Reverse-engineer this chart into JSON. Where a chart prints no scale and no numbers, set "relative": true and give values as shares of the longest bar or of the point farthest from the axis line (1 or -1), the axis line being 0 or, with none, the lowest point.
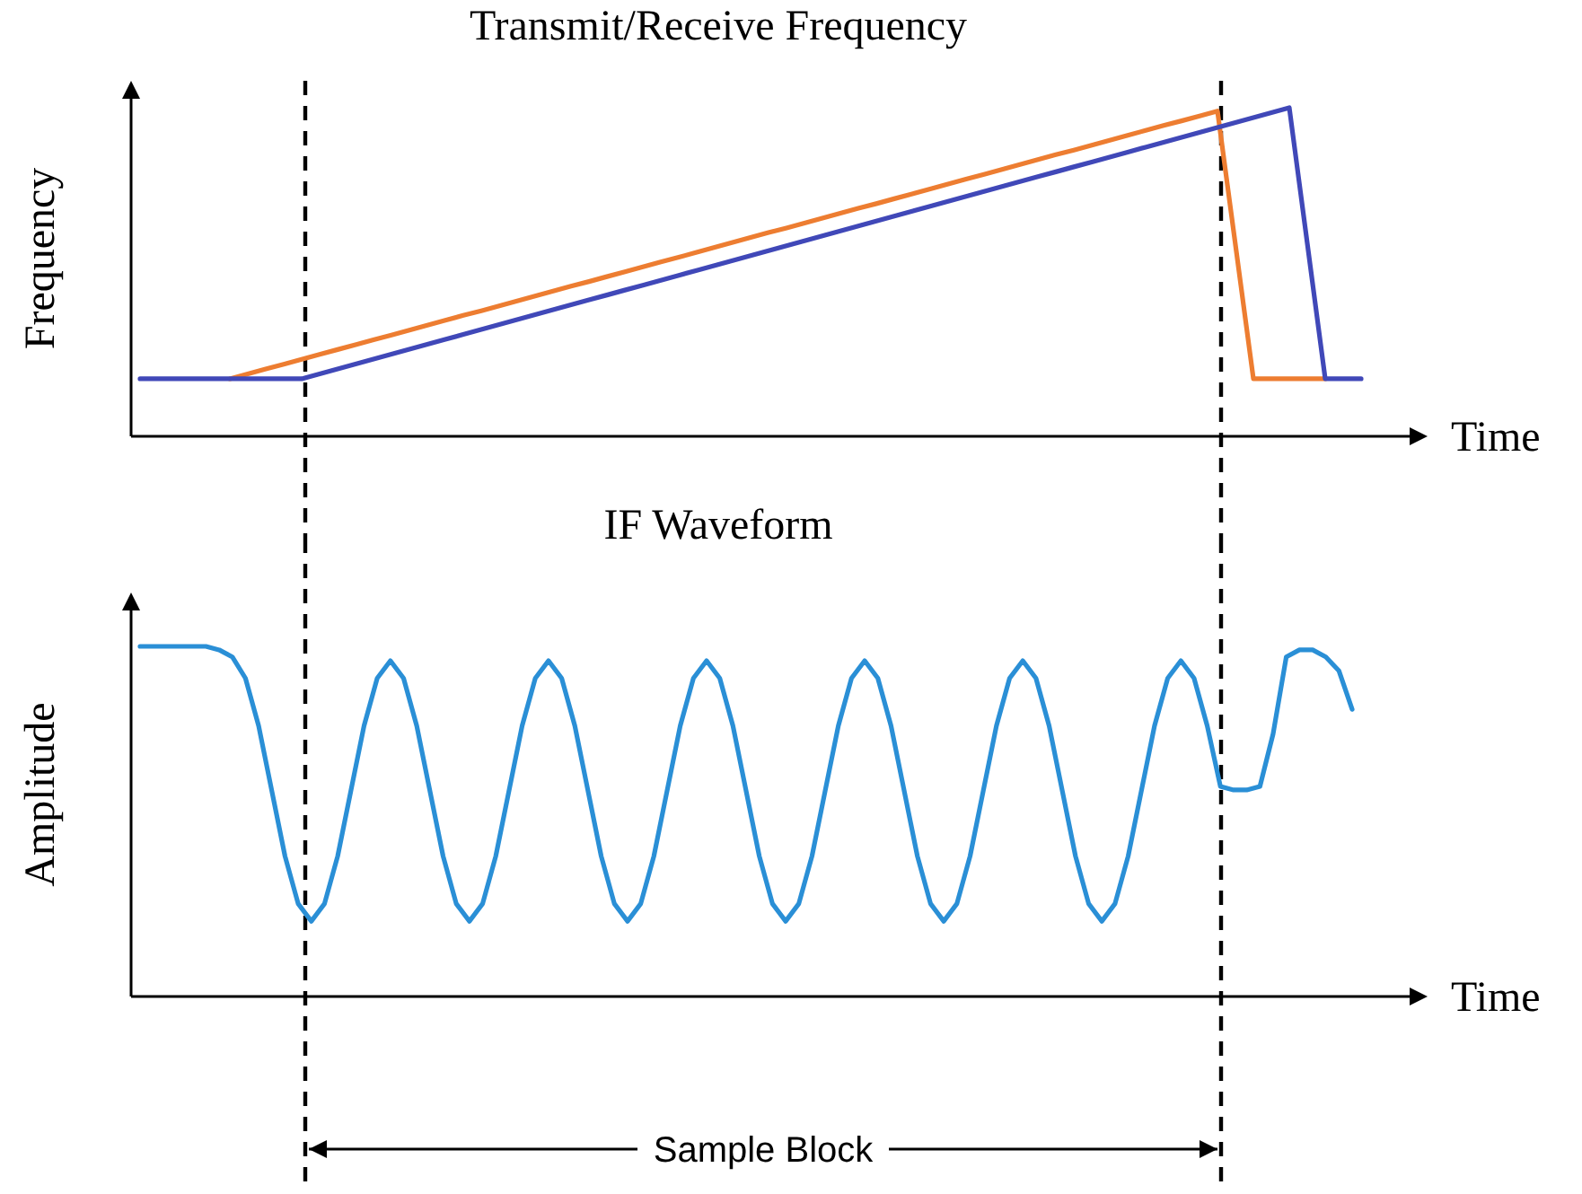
{
  "chart_data": [
    {
      "type": "line",
      "title": "Transmit/Receive Frequency",
      "xlabel": "Time",
      "ylabel": "Frequency",
      "relative": true,
      "categories": [
        null,
        null,
        null,
        null,
        null,
        null,
        null,
        null,
        null,
        null,
        null,
        null,
        null,
        null,
        null,
        null,
        null,
        null,
        null,
        null,
        null,
        null,
        null,
        null,
        null,
        null,
        null,
        null,
        null,
        null,
        null,
        null,
        null,
        null,
        null,
        null,
        null,
        null,
        null,
        null,
        null,
        null,
        null,
        null,
        null,
        null,
        null,
        null,
        null,
        null,
        null,
        null,
        null,
        null,
        null,
        null,
        null,
        null,
        null,
        null,
        null,
        null,
        null,
        null,
        null,
        null,
        null,
        null,
        null
      ],
      "series": [
        {
          "color": "#ed7d31",
          "values": [
            null,
            null,
            null,
            null,
            null,
            0.175,
            0.19,
            0.205,
            0.219,
            0.234,
            0.249,
            0.264,
            0.279,
            0.294,
            0.308,
            0.323,
            0.338,
            0.353,
            0.368,
            0.382,
            0.397,
            0.412,
            0.427,
            0.442,
            0.457,
            0.471,
            0.486,
            0.501,
            0.516,
            0.531,
            0.545,
            0.56,
            0.575,
            0.59,
            0.605,
            0.62,
            0.634,
            0.649,
            0.664,
            0.679,
            0.694,
            0.708,
            0.723,
            0.738,
            0.753,
            0.768,
            0.783,
            0.797,
            0.812,
            0.827,
            0.842,
            0.857,
            0.871,
            0.886,
            0.901,
            0.916,
            0.931,
            0.946,
            0.96,
            0.975,
            0.99,
            0.583,
            0.175,
            0.175,
            0.175,
            0.175,
            0.175,
            null,
            null
          ]
        },
        {
          "color": "#4048b8",
          "values": [
            0.175,
            0.175,
            0.175,
            0.175,
            0.175,
            0.175,
            0.175,
            0.175,
            0.175,
            0.175,
            0.19,
            0.205,
            0.22,
            0.235,
            0.25,
            0.265,
            0.28,
            0.295,
            0.31,
            0.325,
            0.34,
            0.355,
            0.37,
            0.385,
            0.4,
            0.415,
            0.43,
            0.445,
            0.46,
            0.475,
            0.49,
            0.505,
            0.52,
            0.535,
            0.55,
            0.565,
            0.58,
            0.595,
            0.61,
            0.625,
            0.64,
            0.655,
            0.67,
            0.685,
            0.7,
            0.715,
            0.73,
            0.745,
            0.76,
            0.775,
            0.79,
            0.805,
            0.82,
            0.835,
            0.85,
            0.865,
            0.88,
            0.895,
            0.91,
            0.925,
            0.94,
            0.955,
            0.97,
            0.985,
            1,
            0.588,
            0.175,
            0.175,
            0.175
          ]
        }
      ]
    },
    {
      "type": "line",
      "title": "IF Waveform",
      "xlabel": "Time",
      "ylabel": "Amplitude",
      "relative": true,
      "categories": [
        null,
        null,
        null,
        null,
        null,
        null,
        null,
        null,
        null,
        null,
        null,
        null,
        null,
        null,
        null,
        null,
        null,
        null,
        null,
        null,
        null,
        null,
        null,
        null,
        null,
        null,
        null,
        null,
        null,
        null,
        null,
        null,
        null,
        null,
        null,
        null,
        null,
        null,
        null,
        null,
        null,
        null,
        null,
        null,
        null,
        null,
        null,
        null,
        null,
        null,
        null,
        null,
        null,
        null,
        null,
        null,
        null,
        null,
        null,
        null,
        null,
        null,
        null,
        null,
        null,
        null,
        null,
        null,
        null,
        null,
        null,
        null,
        null,
        null,
        null,
        null,
        null,
        null,
        null,
        null,
        null,
        null,
        null,
        null,
        null,
        null,
        null,
        null,
        null,
        null,
        null,
        null,
        null
      ],
      "series": [
        {
          "color": "#2a8fd6",
          "values": [
            1,
            1,
            1,
            1,
            1,
            1,
            0.99,
            0.97,
            0.909,
            0.773,
            0.587,
            0.401,
            0.265,
            0.215,
            0.265,
            0.401,
            0.587,
            0.773,
            0.909,
            0.959,
            0.909,
            0.773,
            0.587,
            0.401,
            0.265,
            0.215,
            0.265,
            0.401,
            0.587,
            0.773,
            0.909,
            0.959,
            0.909,
            0.773,
            0.587,
            0.401,
            0.265,
            0.215,
            0.265,
            0.401,
            0.587,
            0.773,
            0.909,
            0.959,
            0.909,
            0.773,
            0.587,
            0.401,
            0.265,
            0.215,
            0.265,
            0.401,
            0.587,
            0.773,
            0.909,
            0.959,
            0.909,
            0.773,
            0.587,
            0.401,
            0.265,
            0.215,
            0.265,
            0.401,
            0.587,
            0.773,
            0.909,
            0.959,
            0.909,
            0.773,
            0.587,
            0.401,
            0.265,
            0.215,
            0.265,
            0.401,
            0.587,
            0.773,
            0.909,
            0.959,
            0.909,
            0.773,
            0.6,
            0.59,
            0.59,
            0.6,
            0.75,
            0.97,
            0.99,
            0.99,
            0.97,
            0.93,
            0.82
          ]
        }
      ],
      "annotations": [
        "Sample Block"
      ]
    }
  ]
}
